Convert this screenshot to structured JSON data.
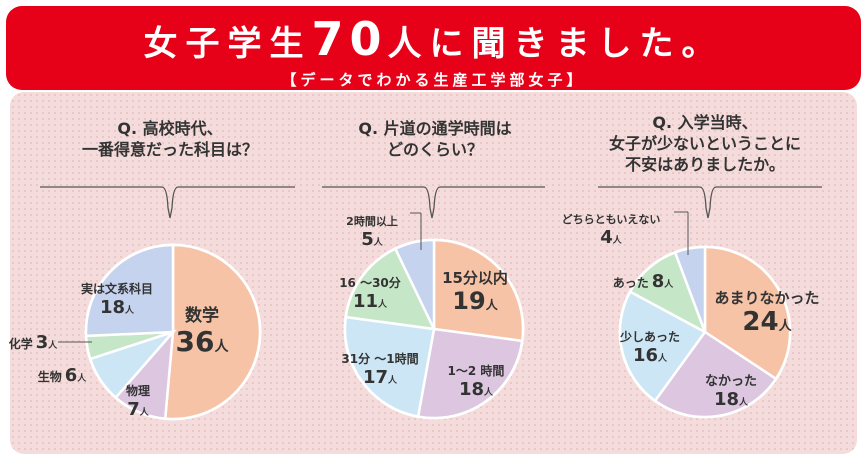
{
  "header": {
    "title_pre": "女子学生",
    "title_num": "70",
    "title_post": "人に聞きました。",
    "subtitle": "【データでわかる生産工学部女子】"
  },
  "questions": [
    {
      "line1": "Q. 高校時代、",
      "line2": "一番得意だった科目は？",
      "line3": ""
    },
    {
      "line1": "Q. 片道の通学時間は",
      "line2": "どのくらい？",
      "line3": ""
    },
    {
      "line1": "Q. 入学当時、",
      "line2": "女子が少ないということに",
      "line3": "不安はありましたか。"
    }
  ],
  "unit": "人",
  "chart_data": [
    {
      "type": "pie",
      "title": "Q. 高校時代、一番得意だった科目は？",
      "labels": [
        "数学",
        "物理",
        "生物",
        "化学",
        "実は文系科目"
      ],
      "values": [
        36,
        7,
        6,
        3,
        18
      ],
      "colors": [
        "#f6c3a6",
        "#dcc6e0",
        "#cde6f6",
        "#c6e6c8",
        "#c6d3ee"
      ]
    },
    {
      "type": "pie",
      "title": "Q. 片道の通学時間はどのくらい？",
      "labels": [
        "15分以内",
        "1〜2 時間",
        "31分 〜1時間",
        "16 〜30分",
        "2時間以上"
      ],
      "values": [
        19,
        18,
        17,
        11,
        5
      ],
      "colors": [
        "#f6c3a6",
        "#dcc6e0",
        "#cde6f6",
        "#c6e6c8",
        "#c6d3ee"
      ]
    },
    {
      "type": "pie",
      "title": "Q. 入学当時、女子が少ないということに不安はありましたか。",
      "labels": [
        "あまりなかった",
        "なかった",
        "少しあった",
        "あった",
        "どちらともいえない"
      ],
      "values": [
        24,
        18,
        16,
        8,
        4
      ],
      "colors": [
        "#f6c3a6",
        "#dcc6e0",
        "#cde6f6",
        "#c6e6c8",
        "#c6d3ee"
      ]
    }
  ]
}
